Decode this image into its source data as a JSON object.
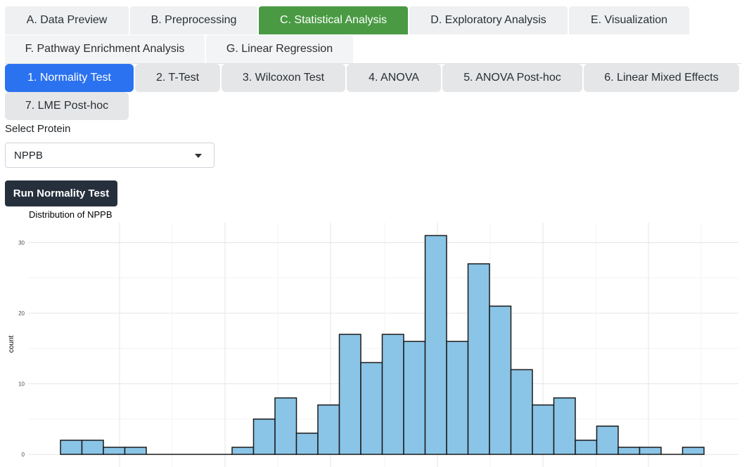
{
  "main_tabs_row1": [
    {
      "label": "A. Data Preview",
      "active": false
    },
    {
      "label": "B. Preprocessing",
      "active": false
    },
    {
      "label": "C. Statistical Analysis",
      "active": true
    },
    {
      "label": "D. Exploratory Analysis",
      "active": false
    },
    {
      "label": "E. Visualization",
      "active": false
    }
  ],
  "main_tabs_row2": [
    {
      "label": "F. Pathway Enrichment Analysis",
      "active": false
    },
    {
      "label": "G. Linear Regression",
      "active": false
    }
  ],
  "sub_tabs_row1": [
    {
      "label": "1. Normality Test",
      "active": true
    },
    {
      "label": "2. T-Test",
      "active": false
    },
    {
      "label": "3. Wilcoxon Test",
      "active": false
    },
    {
      "label": "4. ANOVA",
      "active": false
    },
    {
      "label": "5. ANOVA Post-hoc",
      "active": false
    },
    {
      "label": "6. Linear Mixed Effects",
      "active": false
    }
  ],
  "sub_tabs_row2": [
    {
      "label": "7. LME Post-hoc",
      "active": false
    }
  ],
  "protein_select": {
    "label": "Select Protein",
    "value": "NPPB"
  },
  "run_button": {
    "label": "Run Normality Test"
  },
  "colors": {
    "active_main": "#4a9a44",
    "active_sub": "#2b72f0",
    "button": "#26303d",
    "bar_fill": "#8ac4e6"
  },
  "chart_data": {
    "type": "bar",
    "title": "Distribution of NPPB",
    "xlabel": "",
    "ylabel": "count",
    "ylim": [
      0,
      32
    ],
    "yticks": [
      0,
      10,
      20,
      30
    ],
    "grid": true,
    "values": [
      2,
      2,
      1,
      1,
      0,
      0,
      0,
      0,
      1,
      5,
      8,
      3,
      7,
      17,
      13,
      17,
      16,
      31,
      16,
      27,
      21,
      12,
      7,
      8,
      2,
      4,
      1,
      1,
      0,
      1
    ]
  }
}
